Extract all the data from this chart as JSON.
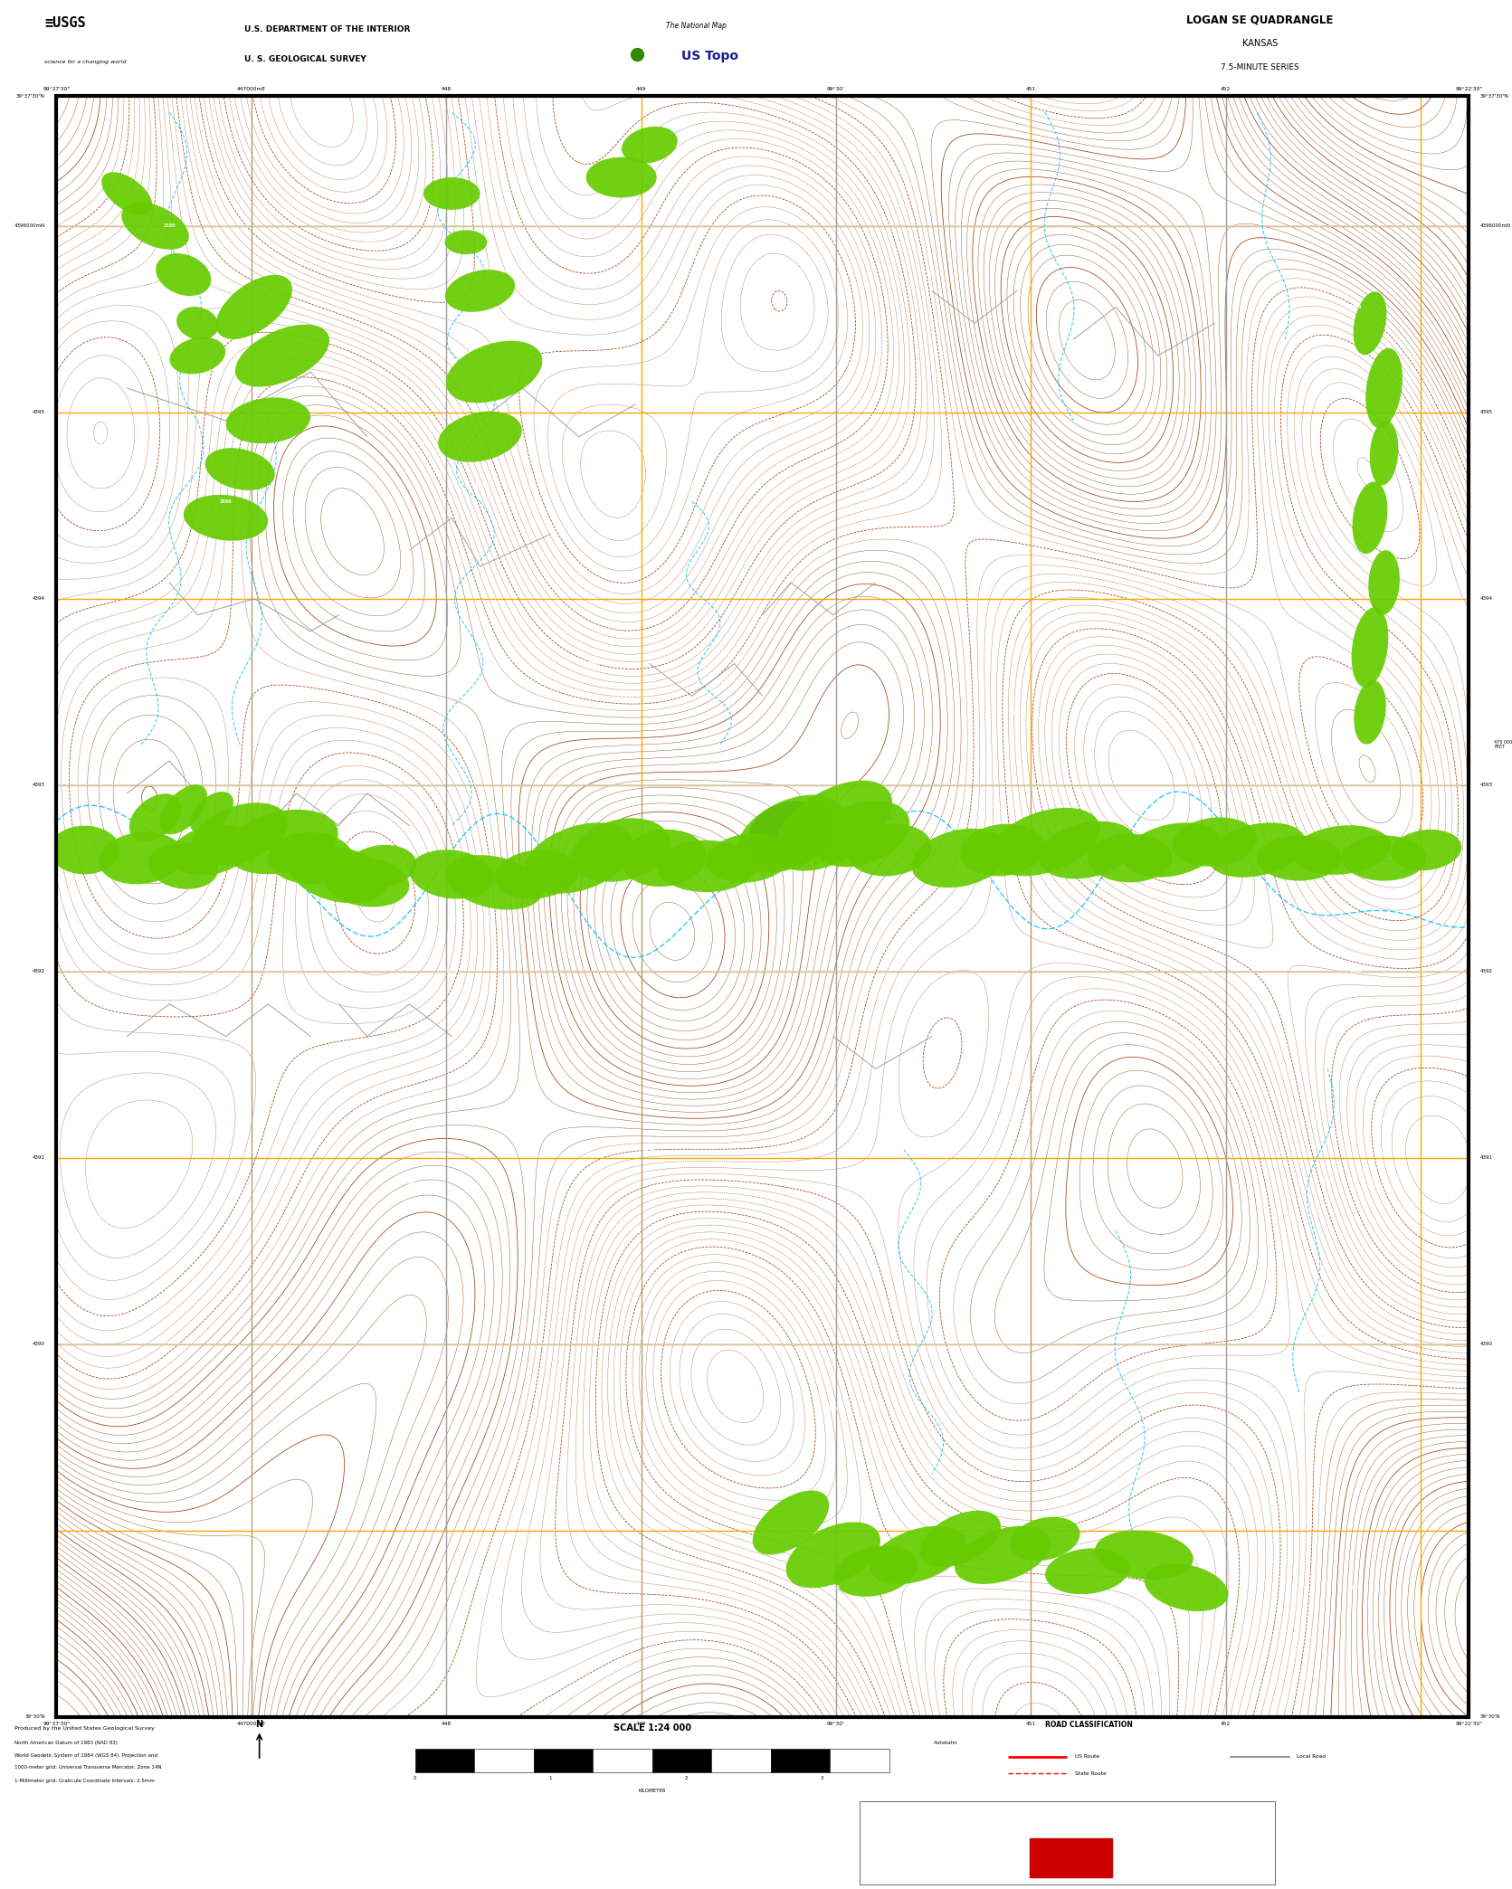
{
  "title": "LOGAN SE QUADRANGLE",
  "subtitle1": "KANSAS",
  "subtitle2": "7.5-MINUTE SERIES",
  "agency_line1": "U.S. DEPARTMENT OF THE INTERIOR",
  "agency_line2": "U. S. GEOLOGICAL SURVEY",
  "scale_text": "SCALE 1:24 000",
  "map_bg_color": "#000000",
  "contour_color": "#8B3A00",
  "contour_index_color": "#A04010",
  "grid_color": "#FFA500",
  "veg_color": "#66CC00",
  "water_color": "#00BFFF",
  "road_color": "#A0A0A0",
  "road_major_color": "#D0D0D0",
  "border_color": "#000000",
  "white": "#FFFFFF",
  "black": "#000000",
  "bottom_black": "#111111",
  "bottom_red_rect": "#CC0000",
  "fig_width": 16.38,
  "fig_height": 20.88,
  "dpi": 100
}
